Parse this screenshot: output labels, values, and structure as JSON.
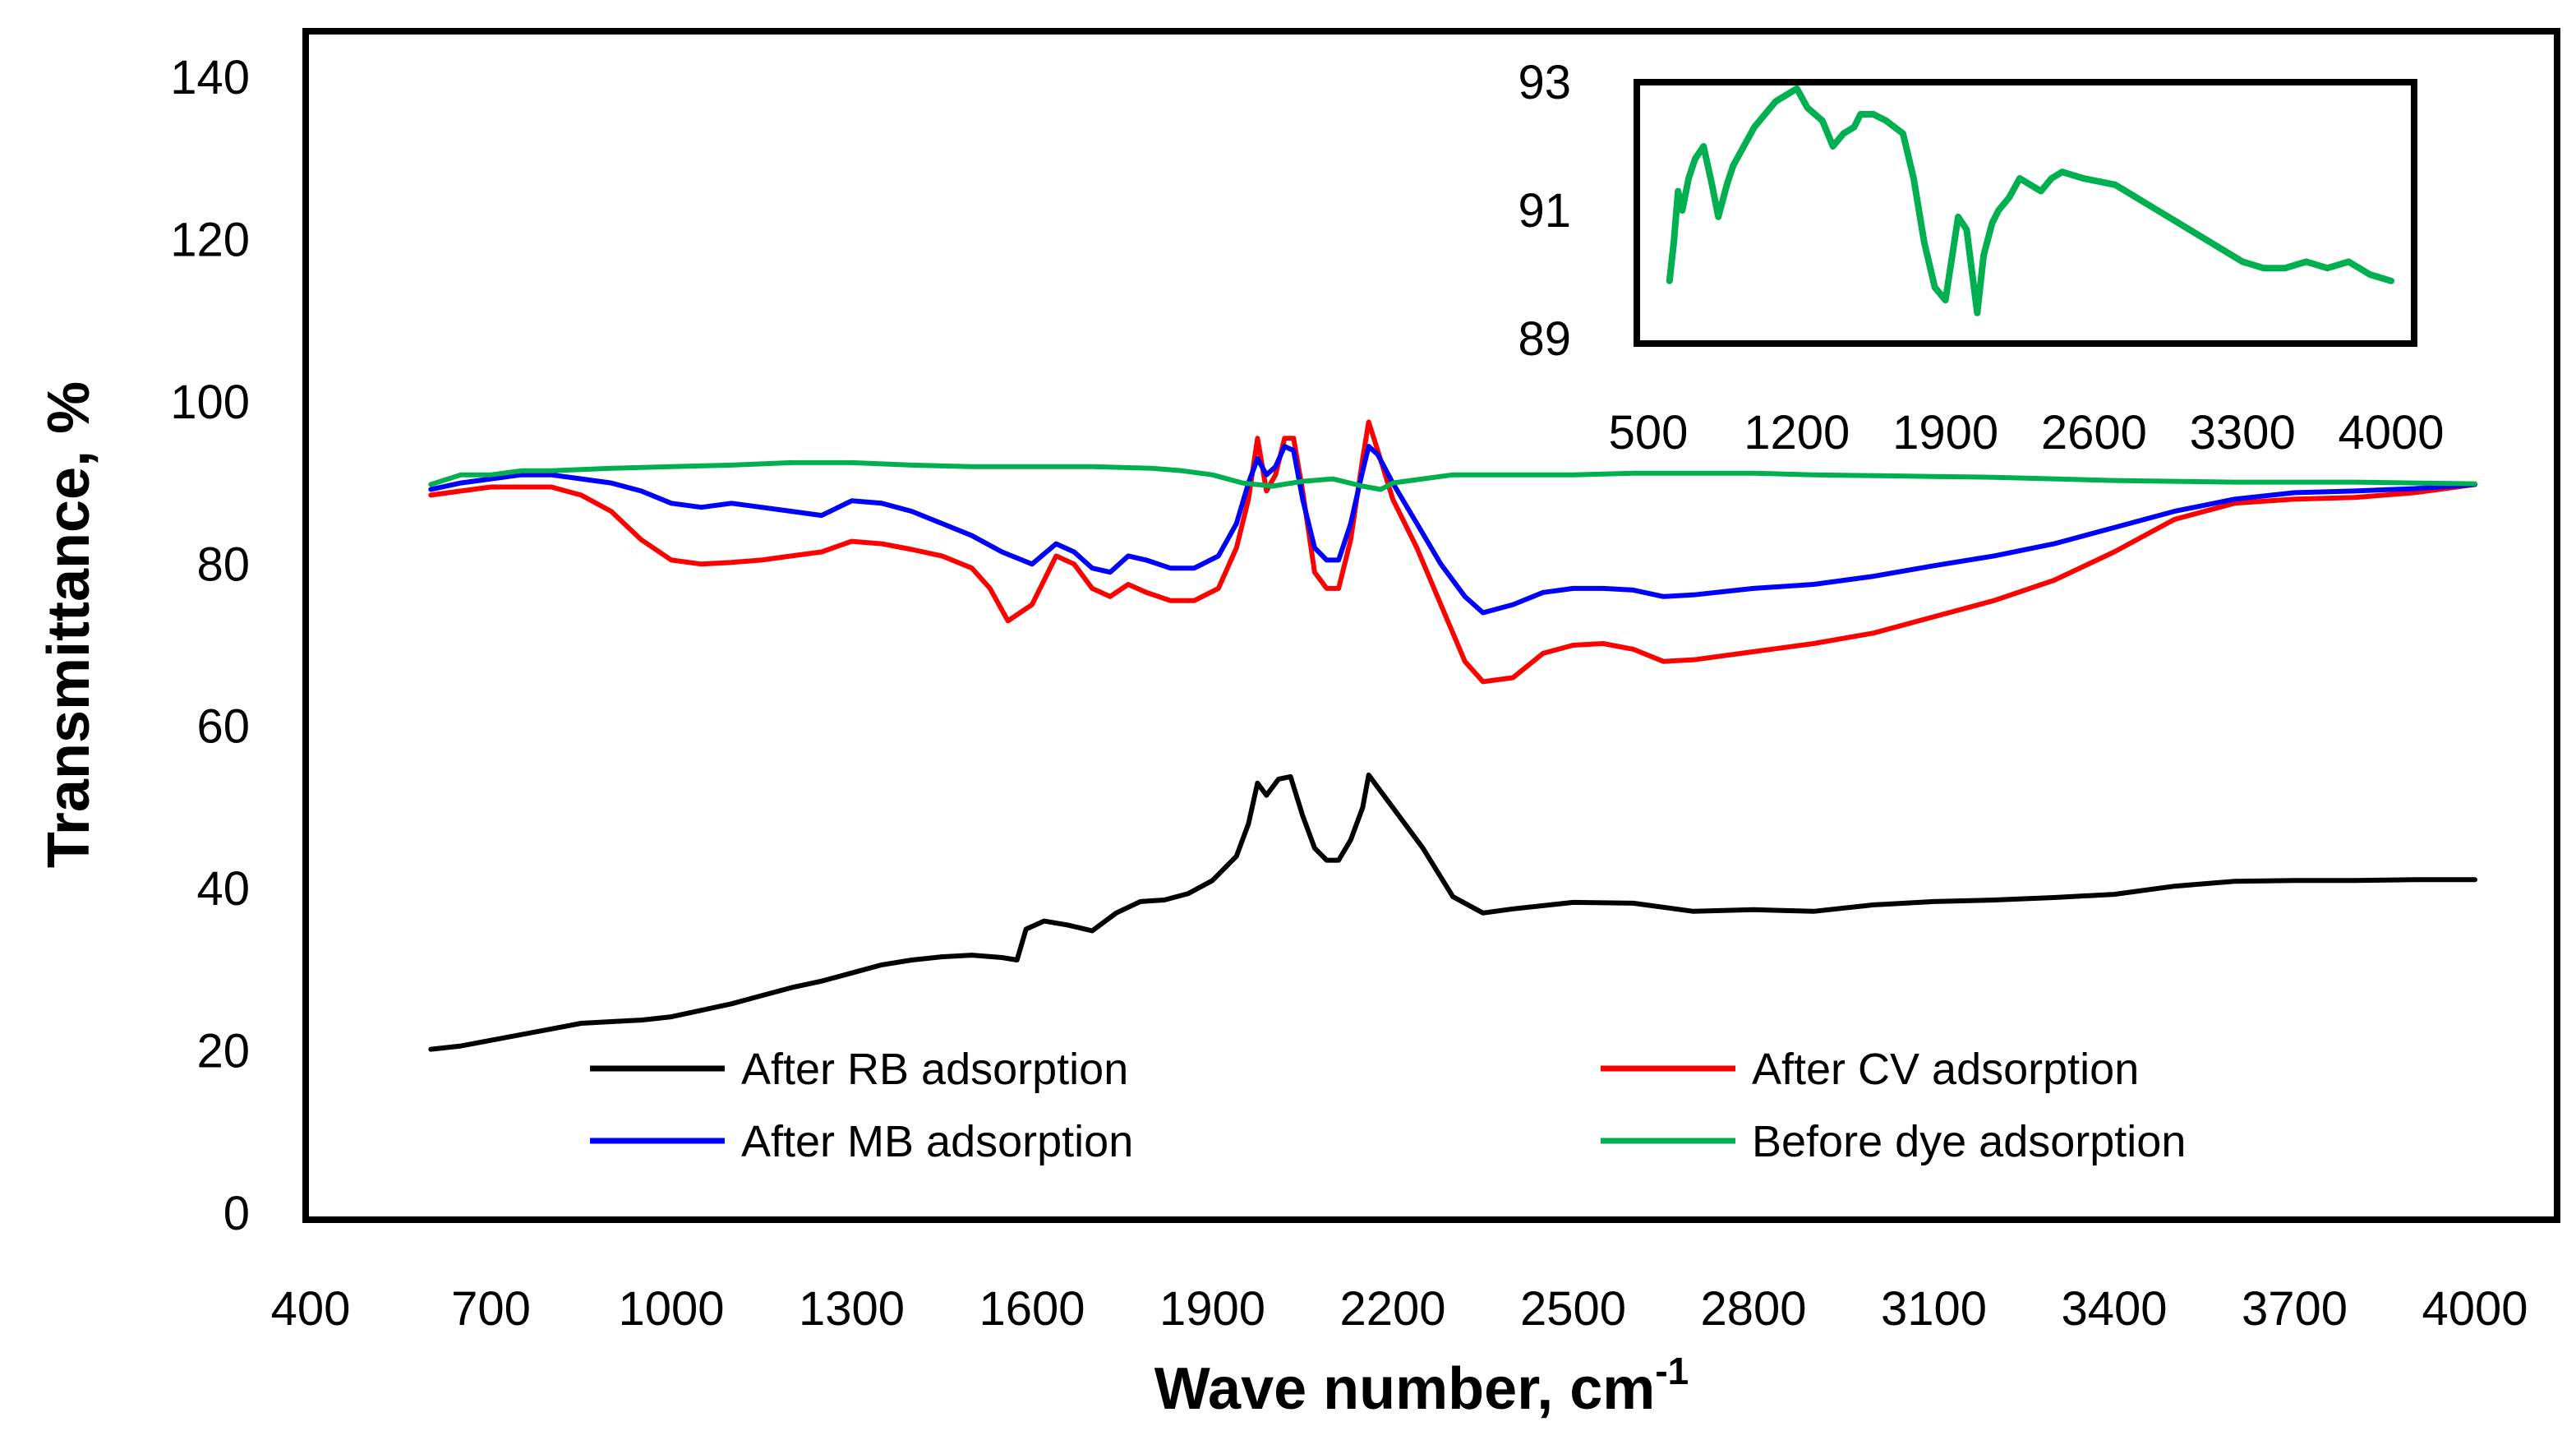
{
  "chart_data": [
    {
      "type": "line",
      "title": "",
      "xlabel": "Wave number, cm",
      "xlabel_superscript": "-1",
      "ylabel": "Transmittance, %",
      "xlim": [
        400,
        4000
      ],
      "ylim": [
        0,
        150
      ],
      "x_ticks": [
        400,
        700,
        1000,
        1300,
        1600,
        1900,
        2200,
        2500,
        2800,
        3100,
        3400,
        3700,
        4000
      ],
      "y_ticks": [
        0,
        20,
        40,
        60,
        80,
        100,
        120,
        140
      ],
      "grid": false,
      "legend_position": "bottom",
      "series": [
        {
          "name": "After RB adsorption",
          "color": "#000000",
          "x": [
            600,
            650,
            700,
            750,
            800,
            850,
            900,
            950,
            1000,
            1050,
            1100,
            1150,
            1200,
            1250,
            1300,
            1350,
            1400,
            1450,
            1500,
            1550,
            1575,
            1590,
            1620,
            1660,
            1700,
            1740,
            1780,
            1820,
            1860,
            1900,
            1940,
            1960,
            1975,
            1990,
            2010,
            2030,
            2050,
            2070,
            2090,
            2110,
            2130,
            2150,
            2160,
            2175,
            2200,
            2250,
            2300,
            2350,
            2400,
            2500,
            2600,
            2700,
            2800,
            2900,
            3000,
            3100,
            3200,
            3300,
            3400,
            3500,
            3600,
            3700,
            3800,
            3900,
            4000
          ],
          "values": [
            20.2,
            20.6,
            21.3,
            22.0,
            22.7,
            23.4,
            23.6,
            23.8,
            24.2,
            25.0,
            25.8,
            26.8,
            27.8,
            28.6,
            29.6,
            30.6,
            31.2,
            31.6,
            31.8,
            31.5,
            31.2,
            35.0,
            36.0,
            35.5,
            34.8,
            37.0,
            38.4,
            38.6,
            39.4,
            41.0,
            44.0,
            48.0,
            53.0,
            51.5,
            53.5,
            53.8,
            49.0,
            45.0,
            43.5,
            43.5,
            46.0,
            50.0,
            54.0,
            52.5,
            50.0,
            45.0,
            39.0,
            37.0,
            37.5,
            38.3,
            38.2,
            37.2,
            37.4,
            37.2,
            38.0,
            38.4,
            38.6,
            38.9,
            39.3,
            40.3,
            40.9,
            41.0,
            41.0,
            41.1,
            41.1
          ]
        },
        {
          "name": "After CV adsorption",
          "color": "#ff0000",
          "x": [
            600,
            650,
            700,
            750,
            800,
            850,
            900,
            950,
            1000,
            1050,
            1100,
            1150,
            1200,
            1250,
            1300,
            1350,
            1400,
            1450,
            1500,
            1530,
            1560,
            1600,
            1640,
            1670,
            1700,
            1730,
            1760,
            1790,
            1830,
            1870,
            1910,
            1940,
            1960,
            1975,
            1990,
            2005,
            2020,
            2035,
            2050,
            2070,
            2090,
            2110,
            2130,
            2150,
            2160,
            2175,
            2200,
            2240,
            2280,
            2320,
            2350,
            2400,
            2450,
            2500,
            2550,
            2600,
            2650,
            2700,
            2800,
            2900,
            3000,
            3100,
            3200,
            3300,
            3400,
            3500,
            3600,
            3700,
            3800,
            3900,
            4000
          ],
          "values": [
            88.5,
            89.0,
            89.5,
            89.5,
            89.5,
            88.5,
            86.5,
            83.0,
            80.5,
            80.0,
            80.2,
            80.5,
            81.0,
            81.5,
            82.8,
            82.5,
            81.8,
            81.0,
            79.5,
            77.0,
            73.0,
            75.0,
            81.0,
            80.0,
            77.0,
            76.0,
            77.5,
            76.5,
            75.5,
            75.5,
            77.0,
            82.0,
            88.0,
            95.5,
            89.0,
            91.0,
            95.5,
            95.5,
            89.0,
            79.0,
            77.0,
            77.0,
            83.0,
            93.0,
            97.5,
            94.0,
            88.0,
            82.0,
            75.0,
            68.0,
            65.5,
            66.0,
            69.0,
            70.0,
            70.2,
            69.5,
            68.0,
            68.2,
            69.2,
            70.2,
            71.5,
            73.5,
            75.5,
            78.0,
            81.5,
            85.5,
            87.5,
            88.0,
            88.2,
            88.8,
            89.8
          ]
        },
        {
          "name": "After MB adsorption",
          "color": "#0000ff",
          "x": [
            600,
            650,
            700,
            750,
            800,
            850,
            900,
            950,
            1000,
            1050,
            1100,
            1150,
            1200,
            1250,
            1300,
            1350,
            1400,
            1450,
            1500,
            1550,
            1600,
            1640,
            1670,
            1700,
            1730,
            1760,
            1790,
            1830,
            1870,
            1910,
            1940,
            1960,
            1975,
            1990,
            2005,
            2020,
            2035,
            2050,
            2070,
            2090,
            2110,
            2130,
            2150,
            2160,
            2175,
            2200,
            2240,
            2280,
            2320,
            2350,
            2400,
            2450,
            2500,
            2550,
            2600,
            2650,
            2700,
            2800,
            2900,
            3000,
            3100,
            3200,
            3300,
            3400,
            3500,
            3600,
            3700,
            3800,
            3900,
            4000
          ],
          "values": [
            89.2,
            90.0,
            90.5,
            91.0,
            91.0,
            90.5,
            90.0,
            89.0,
            87.5,
            87.0,
            87.5,
            87.0,
            86.5,
            86.0,
            87.8,
            87.5,
            86.5,
            85.0,
            83.5,
            81.5,
            80.0,
            82.5,
            81.5,
            79.5,
            79.0,
            81.0,
            80.5,
            79.5,
            79.5,
            81.0,
            85.0,
            90.0,
            93.0,
            91.0,
            92.0,
            94.5,
            94.0,
            88.0,
            82.0,
            80.5,
            80.5,
            85.0,
            91.5,
            94.5,
            93.5,
            90.0,
            85.0,
            80.0,
            76.0,
            74.0,
            75.0,
            76.5,
            77.0,
            77.0,
            76.8,
            76.0,
            76.2,
            77.0,
            77.5,
            78.5,
            79.8,
            81.0,
            82.5,
            84.5,
            86.5,
            88.0,
            88.8,
            89.0,
            89.3,
            89.8
          ]
        },
        {
          "name": "Before dye adsorption",
          "color": "#00b050",
          "x": [
            600,
            650,
            700,
            750,
            800,
            900,
            1000,
            1100,
            1200,
            1300,
            1400,
            1500,
            1600,
            1700,
            1800,
            1850,
            1900,
            1950,
            2000,
            2050,
            2100,
            2150,
            2180,
            2200,
            2250,
            2300,
            2400,
            2500,
            2600,
            2700,
            2800,
            2900,
            3000,
            3100,
            3200,
            3300,
            3400,
            3500,
            3600,
            3700,
            3800,
            3900,
            4000
          ],
          "values": [
            89.8,
            91.0,
            91.0,
            91.5,
            91.5,
            91.8,
            92.0,
            92.2,
            92.5,
            92.5,
            92.2,
            92.0,
            92.0,
            92.0,
            91.8,
            91.5,
            91.0,
            90.0,
            89.6,
            90.2,
            90.5,
            89.6,
            89.2,
            90.0,
            90.5,
            91.0,
            91.0,
            91.0,
            91.2,
            91.2,
            91.2,
            91.0,
            90.9,
            90.8,
            90.7,
            90.5,
            90.3,
            90.2,
            90.1,
            90.1,
            90.1,
            90.0,
            89.9
          ]
        }
      ]
    },
    {
      "type": "line",
      "title": "",
      "xlabel": "",
      "ylabel": "",
      "xlim": [
        500,
        4000
      ],
      "ylim": [
        89,
        93
      ],
      "x_ticks": [
        500,
        1200,
        1900,
        2600,
        3300,
        4000
      ],
      "y_ticks": [
        89,
        91,
        93
      ],
      "grid": false,
      "series": [
        {
          "name": "Before dye adsorption",
          "color": "#00b050",
          "x": [
            600,
            620,
            640,
            660,
            690,
            720,
            760,
            800,
            830,
            870,
            900,
            950,
            1000,
            1100,
            1200,
            1250,
            1320,
            1370,
            1420,
            1470,
            1500,
            1560,
            1620,
            1700,
            1750,
            1800,
            1850,
            1900,
            1960,
            2000,
            2050,
            2080,
            2120,
            2150,
            2200,
            2250,
            2300,
            2350,
            2400,
            2450,
            2550,
            2700,
            2800,
            2900,
            3000,
            3100,
            3200,
            3300,
            3400,
            3500,
            3600,
            3700,
            3800,
            3900,
            4000
          ],
          "values": [
            89.9,
            90.5,
            91.3,
            91.0,
            91.5,
            91.8,
            92.0,
            91.4,
            90.9,
            91.4,
            91.7,
            92.0,
            92.3,
            92.7,
            92.9,
            92.6,
            92.4,
            92.0,
            92.2,
            92.3,
            92.5,
            92.5,
            92.4,
            92.2,
            91.5,
            90.5,
            89.8,
            89.6,
            90.9,
            90.7,
            89.4,
            90.3,
            90.8,
            91.0,
            91.2,
            91.5,
            91.4,
            91.3,
            91.5,
            91.6,
            91.5,
            91.4,
            91.2,
            91.0,
            90.8,
            90.6,
            90.4,
            90.2,
            90.1,
            90.1,
            90.2,
            90.1,
            90.2,
            90.0,
            89.9
          ]
        }
      ]
    }
  ]
}
